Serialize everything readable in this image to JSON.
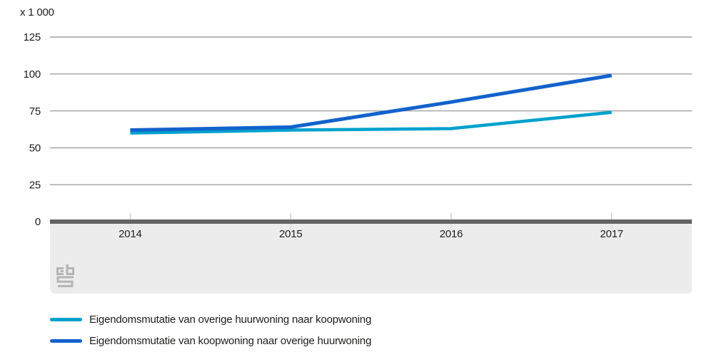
{
  "chart_data": {
    "type": "line",
    "unit_label": "x 1 000",
    "categories": [
      "2014",
      "2015",
      "2016",
      "2017"
    ],
    "series": [
      {
        "name": "Eigendomsmutatie van overige huurwoning naar koopwoning",
        "color": "#00a1cd",
        "values": [
          60,
          62,
          63,
          74
        ]
      },
      {
        "name": "Eigendomsmutatie van koopwoning naar overige huurwoning",
        "color": "#1262cc",
        "values": [
          62,
          64,
          81,
          99
        ]
      }
    ],
    "yticks": [
      125,
      100,
      75,
      50,
      25,
      0
    ],
    "ylim": [
      0,
      125
    ],
    "grid": true,
    "legend_position": "bottom"
  },
  "colors": {
    "grid_line": "#a0a0a0",
    "axis_bar": "#636363",
    "footer_background": "#ececec",
    "tick_mark": "#c8c8c8",
    "tick_mark_below": "#dedede",
    "text": "#1d1d1b",
    "logo_gray": "#b5b5b5"
  },
  "branding": {
    "logo": "cbs-logo"
  }
}
